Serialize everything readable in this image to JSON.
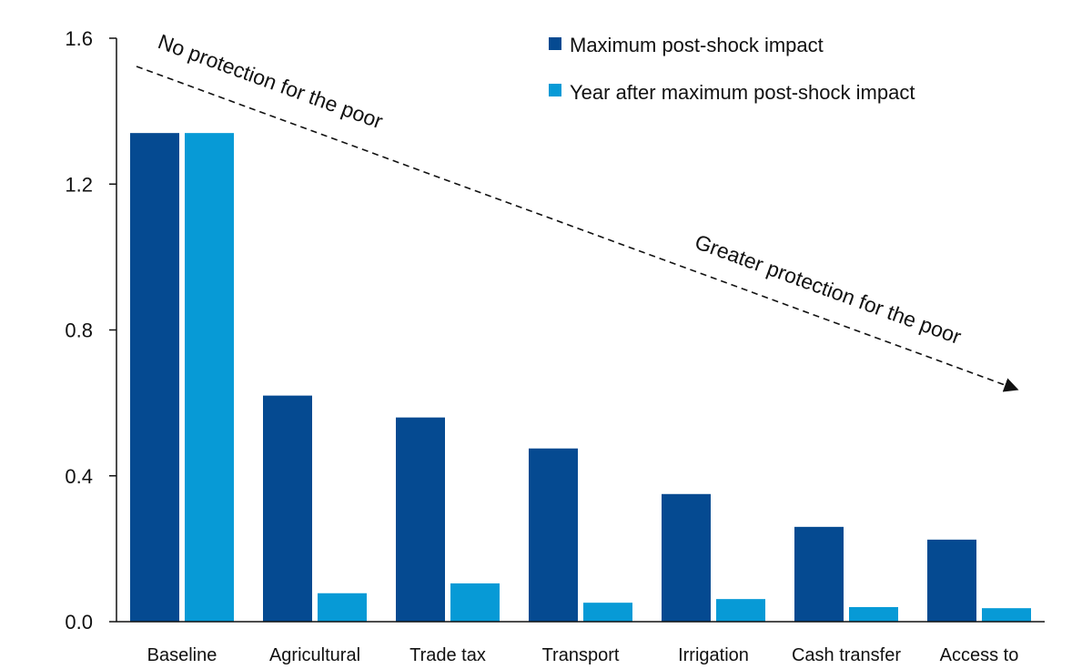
{
  "colors": {
    "series_0": "#054a91",
    "series_1": "#079ad6",
    "axis": "#111111",
    "arrow": "#111111"
  },
  "chart_data": {
    "type": "bar",
    "categories": [
      "Baseline",
      "Agricultural",
      "Trade tax",
      "Transport",
      "Irrigation",
      "Cash transfer",
      "Access to"
    ],
    "series": [
      {
        "name": "Maximum post-shock impact",
        "values": [
          1.34,
          0.62,
          0.56,
          0.475,
          0.35,
          0.26,
          0.225
        ]
      },
      {
        "name": "Year after maximum post-shock impact",
        "values": [
          1.34,
          0.078,
          0.105,
          0.052,
          0.062,
          0.04,
          0.037
        ]
      }
    ],
    "y_ticks": [
      "0.0",
      "0.4",
      "0.8",
      "1.2",
      "1.6"
    ],
    "ylim": [
      0,
      1.6
    ],
    "legend_position": "top-right",
    "grid": false,
    "annotations": {
      "top": "No protection for the poor",
      "bottom": "Greater protection for the poor"
    }
  }
}
